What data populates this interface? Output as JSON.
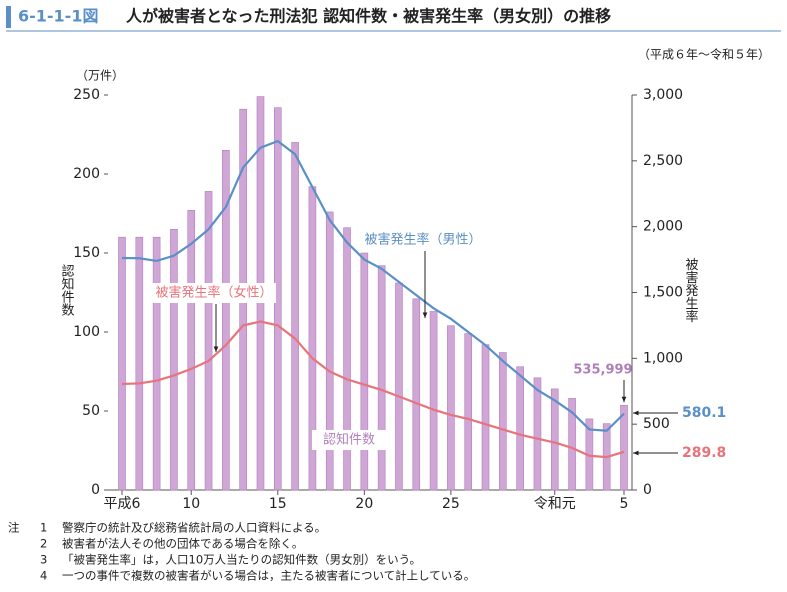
{
  "header": {
    "figure_no": "6-1-1-1図",
    "title": "人が被害者となった刑法犯 認知件数・被害発生率（男女別）の推移"
  },
  "chart_data": {
    "type": "bar-line",
    "subtitle": "（平成６年～令和５年）",
    "y_unit": "（万件）",
    "y_label": "認知件数",
    "y2_label": "被害発生率",
    "categories": [
      "平成6",
      null,
      null,
      null,
      "10",
      null,
      null,
      null,
      null,
      "15",
      null,
      null,
      null,
      null,
      "20",
      null,
      null,
      null,
      null,
      "25",
      null,
      null,
      null,
      null,
      null,
      "令和元",
      null,
      null,
      null,
      "5"
    ],
    "ylim": [
      0,
      250
    ],
    "yticks": [
      0,
      50,
      100,
      150,
      200,
      250
    ],
    "y2lim": [
      0,
      3000
    ],
    "y2ticks": [
      0,
      500,
      {
        "value": 1000,
        "label": "1,000"
      },
      {
        "value": 1500,
        "label": "1,500"
      },
      {
        "value": 2000,
        "label": "2,000"
      },
      {
        "value": 2500,
        "label": "2,500"
      },
      {
        "value": 3000,
        "label": "3,000"
      }
    ],
    "series": [
      {
        "name": "認知件数",
        "type": "bar",
        "color": "#cfa6d6",
        "values": [
          160,
          160,
          160,
          165,
          177,
          189,
          215,
          241,
          249,
          242,
          220,
          192,
          176,
          166,
          150,
          142,
          131,
          121,
          113,
          104,
          99,
          92,
          87,
          78,
          71,
          64,
          58,
          45,
          42,
          53.5999
        ],
        "value_labels": [
          null,
          null,
          null,
          null,
          null,
          null,
          null,
          null,
          null,
          null,
          null,
          null,
          null,
          null,
          null,
          null,
          null,
          null,
          null,
          null,
          null,
          null,
          null,
          null,
          null,
          null,
          null,
          null,
          null,
          "535,999"
        ]
      },
      {
        "name": "被害発生率（男性）",
        "type": "line",
        "axis": "y2",
        "color": "#5b8fc7",
        "values": [
          1762,
          1760,
          1740,
          1780,
          1870,
          1980,
          2150,
          2450,
          2600,
          2650,
          2550,
          2300,
          2050,
          1880,
          1750,
          1680,
          1580,
          1480,
          1380,
          1300,
          1200,
          1100,
          980,
          870,
          760,
          680,
          590,
          460,
          450,
          580.1
        ]
      },
      {
        "name": "被害発生率（女性）",
        "type": "line",
        "axis": "y2",
        "color": "#e8737a",
        "values": [
          805,
          810,
          830,
          870,
          920,
          980,
          1100,
          1250,
          1280,
          1250,
          1150,
          1000,
          900,
          840,
          800,
          760,
          710,
          660,
          610,
          570,
          540,
          500,
          460,
          420,
          390,
          360,
          320,
          260,
          250,
          289.8
        ]
      }
    ]
  },
  "notes": {
    "label": "注",
    "items": [
      {
        "num": "1",
        "text": "警察庁の統計及び総務省統計局の人口資料による。"
      },
      {
        "num": "2",
        "text": "被害者が法人その他の団体である場合を除く。"
      },
      {
        "num": "3",
        "text": "「被害発生率」は，人口10万人当たりの認知件数（男女別）をいう。"
      },
      {
        "num": "4",
        "text": "一つの事件で複数の被害者がいる場合は，主たる被害者について計上している。"
      }
    ]
  }
}
